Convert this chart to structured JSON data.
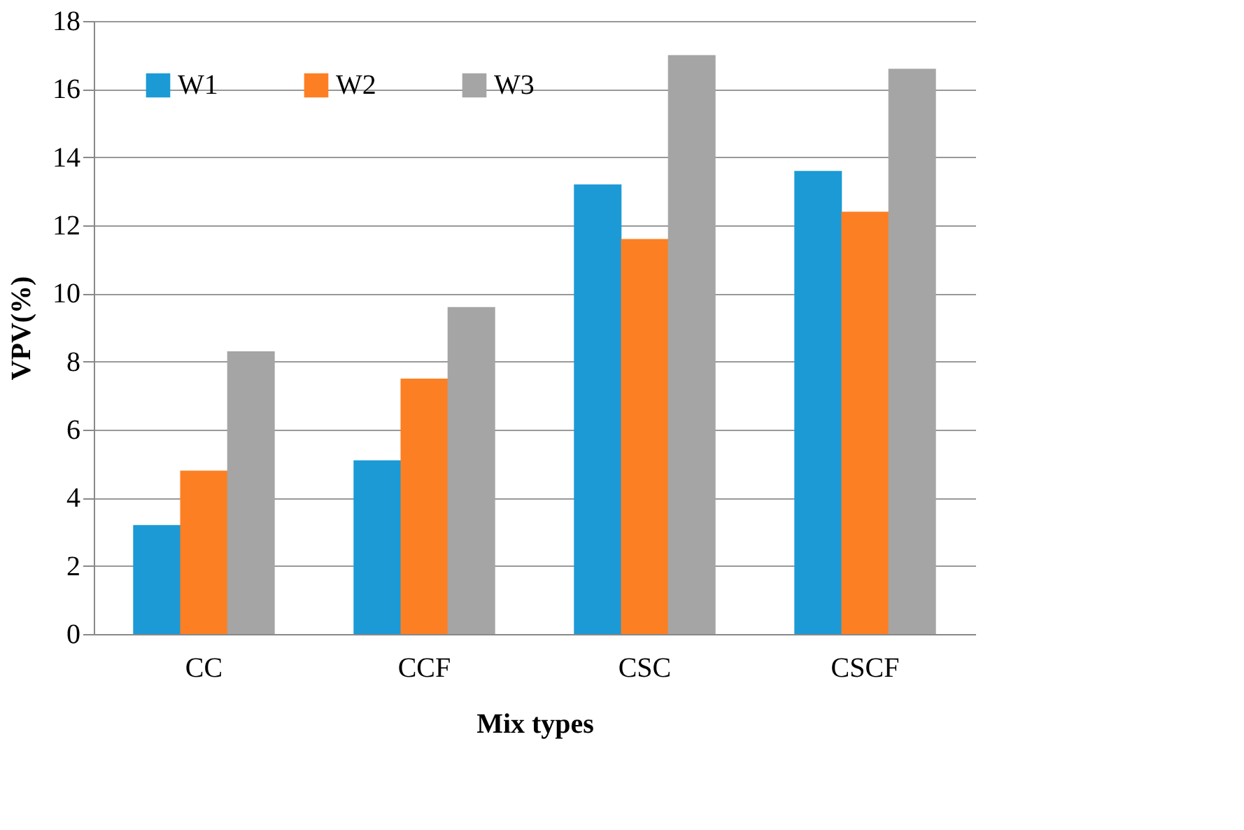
{
  "chart_data": {
    "type": "bar",
    "xlabel": "Mix types",
    "ylabel": "VPV(%)",
    "categories": [
      "CC",
      "CCF",
      "CSC",
      "CSCF"
    ],
    "series": [
      {
        "name": "W1",
        "color": "#1b9ad6",
        "values": [
          3.2,
          5.1,
          13.2,
          13.6
        ]
      },
      {
        "name": "W2",
        "color": "#fd7f24",
        "values": [
          4.8,
          7.5,
          11.6,
          12.4
        ]
      },
      {
        "name": "W3",
        "color": "#a5a5a5",
        "values": [
          8.3,
          9.6,
          17.0,
          16.6
        ]
      }
    ],
    "ylim": [
      0,
      18
    ],
    "yticks": [
      0,
      2,
      4,
      6,
      8,
      10,
      12,
      14,
      16,
      18
    ],
    "grid": "y",
    "legend": "top left"
  }
}
